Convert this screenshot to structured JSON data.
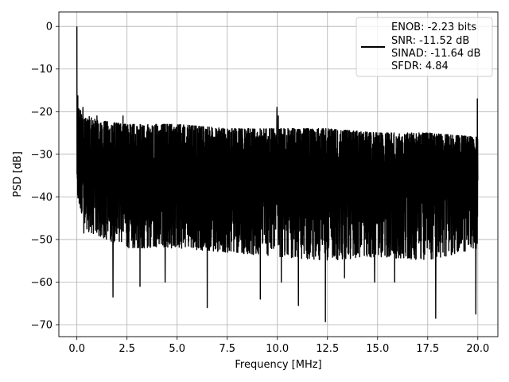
{
  "chart_data": {
    "type": "line",
    "xlabel": "Frequency [MHz]",
    "ylabel": "PSD [dB]",
    "xlim": [
      -0.9,
      21.0
    ],
    "ylim": [
      -72.8,
      3.4
    ],
    "xticks": [
      0.0,
      2.5,
      5.0,
      7.5,
      10.0,
      12.5,
      15.0,
      17.5,
      20.0
    ],
    "xtick_labels": [
      "0.0",
      "2.5",
      "5.0",
      "7.5",
      "10.0",
      "12.5",
      "15.0",
      "17.5",
      "20.0"
    ],
    "yticks": [
      0,
      -10,
      -20,
      -30,
      -40,
      -50,
      -60,
      -70
    ],
    "ytick_labels": [
      "0",
      "−10",
      "−20",
      "−30",
      "−40",
      "−50",
      "−60",
      "−70"
    ],
    "grid": true,
    "legend_position": "top-right",
    "legend_lines": [
      "ENOB: -2.23 bits",
      "SNR: -11.52 dB",
      "SINAD: -11.64 dB",
      "SFDR: 4.84"
    ],
    "series": [
      {
        "color": "#000000",
        "x_range": [
          0.0,
          20.0
        ],
        "dc_peak": 0,
        "upper_envelope": [
          [
            0.0,
            -14
          ],
          [
            0.1,
            -18
          ],
          [
            0.3,
            -22
          ],
          [
            0.6,
            -21
          ],
          [
            1.0,
            -22
          ],
          [
            2.5,
            -23
          ],
          [
            5.0,
            -23
          ],
          [
            7.5,
            -24
          ],
          [
            10.0,
            -24
          ],
          [
            12.5,
            -24
          ],
          [
            15.0,
            -25
          ],
          [
            17.5,
            -25
          ],
          [
            20.0,
            -26
          ]
        ],
        "lower_envelope": [
          [
            0.0,
            -40
          ],
          [
            0.5,
            -48
          ],
          [
            2.5,
            -52
          ],
          [
            5.0,
            -52
          ],
          [
            7.5,
            -53
          ],
          [
            10.0,
            -54
          ],
          [
            12.5,
            -55
          ],
          [
            15.0,
            -54
          ],
          [
            17.5,
            -55
          ],
          [
            20.0,
            -52
          ]
        ],
        "spurs": [
          [
            0.3,
            -19
          ],
          [
            1.0,
            -21
          ],
          [
            2.3,
            -21
          ],
          [
            9.98,
            -19
          ],
          [
            10.05,
            -21
          ],
          [
            19.98,
            -17
          ]
        ],
        "dips": [
          [
            0.35,
            -48.5
          ],
          [
            1.8,
            -63.5
          ],
          [
            3.15,
            -61
          ],
          [
            4.4,
            -60
          ],
          [
            6.5,
            -66
          ],
          [
            9.15,
            -64
          ],
          [
            10.2,
            -60
          ],
          [
            11.05,
            -65.5
          ],
          [
            12.4,
            -69.3
          ],
          [
            13.35,
            -59
          ],
          [
            14.85,
            -60
          ],
          [
            15.85,
            -60
          ],
          [
            17.9,
            -68.5
          ],
          [
            19.9,
            -67.5
          ]
        ],
        "mean_level": -34
      }
    ]
  }
}
